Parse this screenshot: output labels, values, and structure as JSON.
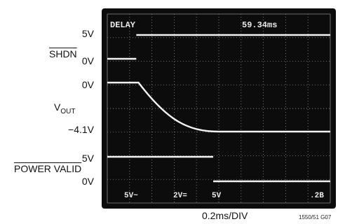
{
  "left_labels": {
    "shdn_name": "SHDN",
    "shdn_high": "5V",
    "shdn_low": "0V",
    "vout_top": "0V",
    "vout_name": "V",
    "vout_sub": "OUT",
    "vout_bottom": "−4.1V",
    "pv_name": "POWER VALID",
    "pv_high": "5V",
    "pv_low": "0V"
  },
  "scope_readout": {
    "top_left": "DELAY",
    "top_right": "59.34ms",
    "bottom": [
      "5V~",
      "2V=",
      "5V",
      ".2B"
    ]
  },
  "caption": "0.2ms/DIV",
  "figure_code": "1550/51 G07",
  "colors": {
    "screen": "#0c0c0c",
    "trace": "#f2f2f2",
    "graticule": "#8a8a8a"
  },
  "chart_data": {
    "type": "line",
    "x_unit": "ms",
    "x_range": [
      0,
      2.0
    ],
    "grid": true,
    "series": [
      {
        "name": "SHDN",
        "x": [
          0.0,
          0.26,
          0.26,
          2.0
        ],
        "y": [
          0,
          0,
          5,
          5
        ],
        "y_range": [
          0,
          5
        ]
      },
      {
        "name": "VOUT",
        "x": [
          0.0,
          0.28,
          0.4,
          0.55,
          0.7,
          0.85,
          1.0,
          2.0
        ],
        "y": [
          0,
          0,
          -1.2,
          -2.3,
          -3.1,
          -3.7,
          -4.1,
          -4.1
        ],
        "y_range": [
          -4.1,
          0
        ]
      },
      {
        "name": "POWER VALID",
        "x": [
          0.0,
          0.95,
          0.95,
          2.0
        ],
        "y": [
          5,
          5,
          0,
          0
        ],
        "y_range": [
          0,
          5
        ]
      }
    ]
  }
}
